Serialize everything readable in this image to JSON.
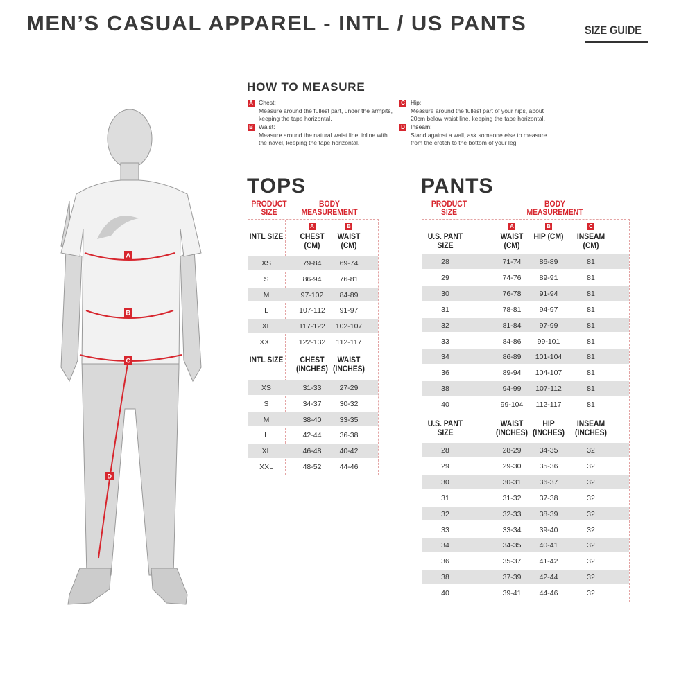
{
  "header": {
    "title": "MEN’S CASUAL APPAREL - INTL / US PANTS",
    "size_guide": "SIZE GUIDE"
  },
  "how_to_measure": {
    "title": "HOW TO MEASURE",
    "items": [
      {
        "badge": "A",
        "label": "Chest:",
        "text": "Measure around the fullest part, under the armpits, keeping the tape horizontal."
      },
      {
        "badge": "B",
        "label": "Waist:",
        "text": "Measure around the natural waist line, inline with the navel, keeping the tape horizontal."
      },
      {
        "badge": "C",
        "label": "Hip:",
        "text": "Measure around the fullest part of your hips, about 20cm below waist line, keeping the tape horizontal."
      },
      {
        "badge": "D",
        "label": "Inseam:",
        "text": "Stand against a wall, ask someone else to measure from the crotch to the bottom of your leg."
      }
    ]
  },
  "figure": {
    "markers": [
      "A",
      "B",
      "C",
      "D"
    ],
    "accent": "#d7262e"
  },
  "tops": {
    "title": "TOPS",
    "product_size": "PRODUCT SIZE",
    "body_measurement": "BODY MEASUREMENT",
    "cm": {
      "badges": [
        "A",
        "B"
      ],
      "headers": [
        "INTL SIZE",
        "CHEST (CM)",
        "WAIST (CM)"
      ],
      "rows": [
        [
          "XS",
          "79-84",
          "69-74"
        ],
        [
          "S",
          "86-94",
          "76-81"
        ],
        [
          "M",
          "97-102",
          "84-89"
        ],
        [
          "L",
          "107-112",
          "91-97"
        ],
        [
          "XL",
          "117-122",
          "102-107"
        ],
        [
          "XXL",
          "122-132",
          "112-117"
        ]
      ]
    },
    "inches": {
      "headers": [
        "INTL SIZE",
        "CHEST (INCHES)",
        "WAIST (INCHES)"
      ],
      "rows": [
        [
          "XS",
          "31-33",
          "27-29"
        ],
        [
          "S",
          "34-37",
          "30-32"
        ],
        [
          "M",
          "38-40",
          "33-35"
        ],
        [
          "L",
          "42-44",
          "36-38"
        ],
        [
          "XL",
          "46-48",
          "40-42"
        ],
        [
          "XXL",
          "48-52",
          "44-46"
        ]
      ]
    }
  },
  "pants": {
    "title": "PANTS",
    "product_size": "PRODUCT SIZE",
    "body_measurement": "BODY MEASUREMENT",
    "cm": {
      "badges": [
        "A",
        "B",
        "C"
      ],
      "headers": [
        "U.S. PANT SIZE",
        "WAIST (CM)",
        "HIP (CM)",
        "INSEAM (CM)"
      ],
      "rows": [
        [
          "28",
          "71-74",
          "86-89",
          "81"
        ],
        [
          "29",
          "74-76",
          "89-91",
          "81"
        ],
        [
          "30",
          "76-78",
          "91-94",
          "81"
        ],
        [
          "31",
          "78-81",
          "94-97",
          "81"
        ],
        [
          "32",
          "81-84",
          "97-99",
          "81"
        ],
        [
          "33",
          "84-86",
          "99-101",
          "81"
        ],
        [
          "34",
          "86-89",
          "101-104",
          "81"
        ],
        [
          "36",
          "89-94",
          "104-107",
          "81"
        ],
        [
          "38",
          "94-99",
          "107-112",
          "81"
        ],
        [
          "40",
          "99-104",
          "112-117",
          "81"
        ]
      ]
    },
    "inches": {
      "headers": [
        "U.S. PANT SIZE",
        "WAIST (INCHES)",
        "HIP (INCHES)",
        "INSEAM (INCHES)"
      ],
      "rows": [
        [
          "28",
          "28-29",
          "34-35",
          "32"
        ],
        [
          "29",
          "29-30",
          "35-36",
          "32"
        ],
        [
          "30",
          "30-31",
          "36-37",
          "32"
        ],
        [
          "31",
          "31-32",
          "37-38",
          "32"
        ],
        [
          "32",
          "32-33",
          "38-39",
          "32"
        ],
        [
          "33",
          "33-34",
          "39-40",
          "32"
        ],
        [
          "34",
          "34-35",
          "40-41",
          "32"
        ],
        [
          "36",
          "35-37",
          "41-42",
          "32"
        ],
        [
          "38",
          "37-39",
          "42-44",
          "32"
        ],
        [
          "40",
          "39-41",
          "44-46",
          "32"
        ]
      ]
    }
  }
}
